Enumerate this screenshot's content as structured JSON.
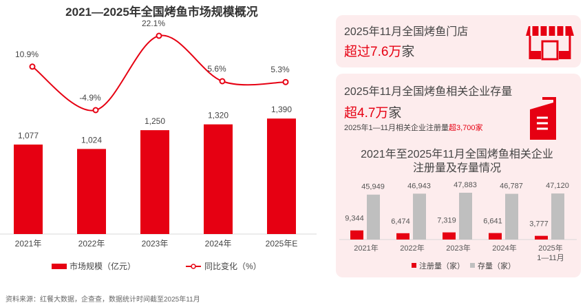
{
  "colors": {
    "accent": "#e60012",
    "gray": "#bfbfbf",
    "card": "#fdeced"
  },
  "cards": {
    "stores": {
      "title": "2025年11月全国烤鱼门店",
      "value_prefix": "超过7.6万",
      "value_suffix": "家",
      "icon": "storefront-icon"
    },
    "companies": {
      "title": "2025年11月全国烤鱼相关企业存量",
      "value_prefix": "超4.7万",
      "value_suffix": "家",
      "note_prefix": "2025年1—11月相关企业注册量",
      "note_value": "超3,700家",
      "icon": "building-icon"
    }
  },
  "footer": "资料来源：红餐大数据，企查查，数据统计时间截至2025年11月",
  "chart_data": [
    {
      "type": "bar+line",
      "title": "2021—2025年全国烤鱼市场规模概况",
      "categories": [
        "2021年",
        "2022年",
        "2023年",
        "2024年",
        "2025年E"
      ],
      "series": [
        {
          "name": "市场规模（亿元）",
          "type": "bar",
          "values": [
            1077,
            1024,
            1250,
            1320,
            1390
          ],
          "labels": [
            "1,077",
            "1,024",
            "1,250",
            "1,320",
            "1,390"
          ]
        },
        {
          "name": "同比变化（%）",
          "type": "line",
          "values": [
            10.9,
            -4.9,
            22.1,
            5.6,
            5.3
          ],
          "labels": [
            "10.9%",
            "-4.9%",
            "22.1%",
            "5.6%",
            "5.3%"
          ]
        }
      ],
      "legend": "bottom"
    },
    {
      "type": "bar",
      "title": "2021年至2025年11月全国烤鱼相关企业注册量及存量情况",
      "title_lines": [
        "2021年至2025年11月全国烤鱼相关企业",
        "注册量及存量情况"
      ],
      "categories": [
        "2021年",
        "2022年",
        "2023年",
        "2024年",
        "2025年 1—11月"
      ],
      "category_lines": [
        [
          "2021年"
        ],
        [
          "2022年"
        ],
        [
          "2023年"
        ],
        [
          "2024年"
        ],
        [
          "2025年",
          "1—11月"
        ]
      ],
      "series": [
        {
          "name": "注册量（家）",
          "values": [
            9344,
            6474,
            7319,
            6641,
            3777
          ],
          "labels": [
            "9,344",
            "6,474",
            "7,319",
            "6,641",
            "3,777"
          ]
        },
        {
          "name": "存量（家）",
          "values": [
            45949,
            46943,
            47883,
            46787,
            47120
          ],
          "labels": [
            "45,949",
            "46,943",
            "47,883",
            "46,787",
            "47,120"
          ]
        }
      ],
      "legend": "bottom"
    }
  ]
}
